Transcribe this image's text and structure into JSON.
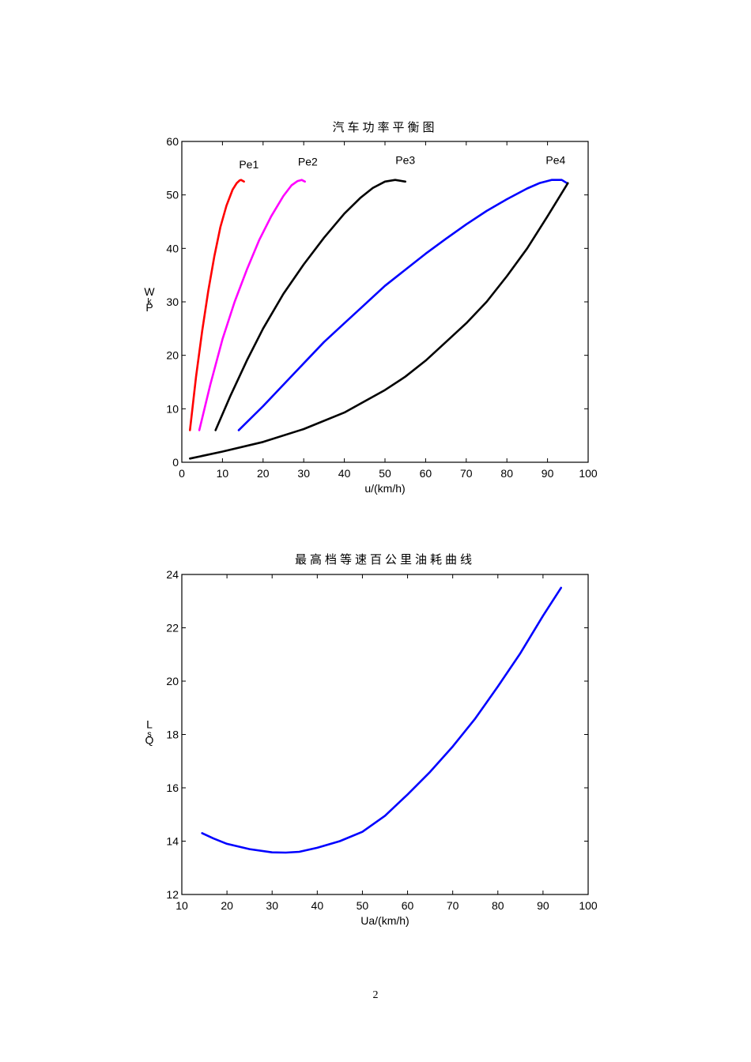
{
  "page": {
    "number": "2"
  },
  "chart_data": [
    {
      "type": "line",
      "title": "汽车功率平衡图",
      "xlabel": "u/(km/h)",
      "ylabel": "Pₑ/kW",
      "ylabel_rendered": [
        "W",
        "k",
        "P"
      ],
      "xlim": [
        0,
        100
      ],
      "ylim": [
        0,
        60
      ],
      "xticks": [
        0,
        10,
        20,
        30,
        40,
        50,
        60,
        70,
        80,
        90,
        100
      ],
      "yticks": [
        0,
        10,
        20,
        30,
        40,
        50,
        60
      ],
      "grid": false,
      "legend": "none (inline curve annotations)",
      "annotations": [
        {
          "text": "Pe1",
          "x": 16.5,
          "y": 55
        },
        {
          "text": "Pe2",
          "x": 31,
          "y": 55.5
        },
        {
          "text": "Pe3",
          "x": 55,
          "y": 55.8
        },
        {
          "text": "Pe4",
          "x": 92,
          "y": 55.8
        }
      ],
      "series": [
        {
          "name": "Pe1",
          "color": "#ff0000",
          "x": [
            2.0,
            3.5,
            5.0,
            6.5,
            8.0,
            9.5,
            11.0,
            12.5,
            13.5,
            14.2,
            14.6,
            15.3
          ],
          "y": [
            6.0,
            16.0,
            24.5,
            32.0,
            38.5,
            44.0,
            48.0,
            51.0,
            52.2,
            52.7,
            52.8,
            52.5
          ]
        },
        {
          "name": "Pe2",
          "color": "#ff00ff",
          "x": [
            4.3,
            7.0,
            10.0,
            13.0,
            16.0,
            19.0,
            22.0,
            25.0,
            27.0,
            28.5,
            29.5,
            30.3
          ],
          "y": [
            6.0,
            14.5,
            23.0,
            30.0,
            36.0,
            41.5,
            46.0,
            49.8,
            51.8,
            52.6,
            52.8,
            52.5
          ]
        },
        {
          "name": "Pe3",
          "color": "#000000",
          "x": [
            8.3,
            12.0,
            16.0,
            20.0,
            25.0,
            30.0,
            35.0,
            40.0,
            44.0,
            47.0,
            50.0,
            52.5,
            55.0
          ],
          "y": [
            6.0,
            12.5,
            19.0,
            25.0,
            31.5,
            37.0,
            42.0,
            46.5,
            49.5,
            51.3,
            52.5,
            52.8,
            52.5
          ]
        },
        {
          "name": "Pe4",
          "color": "#0000ff",
          "x": [
            14.0,
            20.0,
            25.0,
            30.0,
            35.0,
            40.0,
            45.0,
            50.0,
            55.0,
            60.0,
            65.0,
            70.0,
            75.0,
            80.0,
            85.0,
            88.0,
            91.0,
            93.5,
            94.8
          ],
          "y": [
            6.0,
            10.5,
            14.5,
            18.5,
            22.5,
            26.0,
            29.5,
            33.0,
            36.0,
            39.0,
            41.8,
            44.5,
            47.0,
            49.2,
            51.2,
            52.2,
            52.8,
            52.8,
            52.2
          ]
        },
        {
          "name": "resistance power",
          "color": "#000000",
          "x": [
            2.0,
            10.0,
            20.0,
            30.0,
            40.0,
            50.0,
            55.0,
            60.0,
            65.0,
            70.0,
            75.0,
            80.0,
            85.0,
            90.0,
            95.0
          ],
          "y": [
            0.7,
            2.0,
            3.8,
            6.2,
            9.3,
            13.5,
            16.0,
            19.0,
            22.5,
            26.0,
            30.0,
            34.8,
            40.0,
            46.0,
            52.2
          ]
        }
      ]
    },
    {
      "type": "line",
      "title": "最高档等速百公里油耗曲线",
      "xlabel": "Ua/(km/h)",
      "ylabel": "Qs/L",
      "ylabel_rendered": [
        "L",
        "s",
        "Q"
      ],
      "xlim": [
        10,
        100
      ],
      "ylim": [
        12,
        24
      ],
      "xticks": [
        10,
        20,
        30,
        40,
        50,
        60,
        70,
        80,
        90,
        100
      ],
      "yticks": [
        12,
        14,
        16,
        18,
        20,
        22,
        24
      ],
      "grid": false,
      "legend": "none",
      "series": [
        {
          "name": "fuel consumption",
          "color": "#0000ff",
          "x": [
            14.5,
            17.0,
            20.0,
            25.0,
            30.0,
            33.0,
            36.0,
            40.0,
            45.0,
            50.0,
            55.0,
            60.0,
            65.0,
            70.0,
            75.0,
            80.0,
            85.0,
            90.0,
            94.0
          ],
          "y": [
            14.3,
            14.1,
            13.9,
            13.7,
            13.58,
            13.57,
            13.6,
            13.75,
            14.0,
            14.35,
            14.95,
            15.75,
            16.6,
            17.55,
            18.6,
            19.8,
            21.05,
            22.45,
            23.5
          ]
        }
      ]
    }
  ]
}
